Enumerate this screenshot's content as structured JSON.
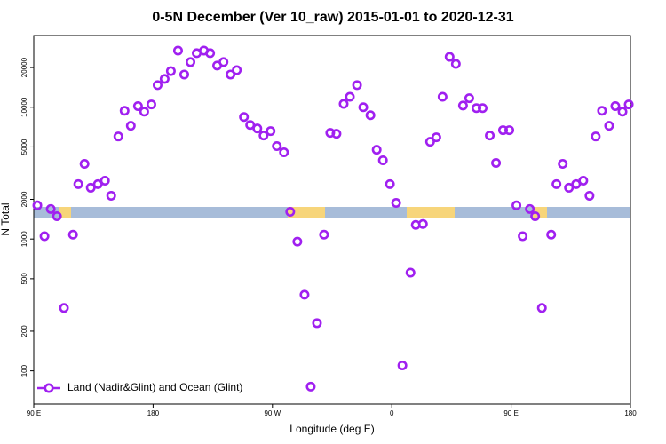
{
  "chart_data": {
    "type": "scatter",
    "title": "0-5N December (Ver 10_raw)   2015-01-01 to 2020-12-31",
    "xlabel": "Longitude (deg E)",
    "ylabel": "N Total",
    "log_y": true,
    "legend": "bottom left",
    "xlim": [
      90,
      540
    ],
    "ylim": [
      56,
      35000
    ],
    "xticks": [
      {
        "value": 90,
        "label": "90 E"
      },
      180,
      {
        "value": 270,
        "label": "90 W"
      },
      {
        "value": 360,
        "label": "0"
      },
      {
        "value": 450,
        "label": "90 E"
      },
      {
        "value": 540,
        "label": "180"
      }
    ],
    "yticks": [
      100,
      200,
      500,
      1000,
      2000,
      5000,
      10000,
      20000
    ],
    "series": [
      {
        "name": "Land (Nadir&Glint) and Ocean (Glint)",
        "color": "#a020f0",
        "x": [
          92.7,
          98.1,
          102.8,
          107.5,
          112.8,
          119.6,
          123.6,
          128.3,
          133.0,
          138.4,
          143.7,
          148.4,
          153.8,
          158.5,
          163.2,
          168.6,
          173.3,
          178.7,
          183.4,
          188.7,
          193.4,
          198.8,
          203.5,
          208.2,
          212.9,
          218.3,
          223.0,
          228.3,
          233.1,
          238.4,
          243.1,
          248.5,
          253.2,
          258.6,
          263.3,
          268.6,
          273.3,
          278.7,
          283.4,
          288.8,
          294.2,
          298.9,
          303.6,
          308.9,
          313.6,
          318.3,
          323.7,
          328.4,
          333.8,
          338.5,
          343.9,
          348.6,
          353.3,
          358.6,
          363.3,
          368.0,
          374.1,
          378.1,
          383.5,
          388.9,
          393.6,
          398.3,
          403.6,
          408.3,
          413.7,
          418.4,
          423.8,
          428.5,
          433.9,
          438.6,
          443.9,
          448.6,
          454.0,
          458.7,
          464.1,
          468.1,
          473.2,
          480.2,
          484.2,
          488.9,
          493.6,
          499.0,
          504.4,
          509.1,
          513.8,
          518.5,
          523.9,
          528.6,
          534.0,
          538.7
        ],
        "values": [
          1800,
          1050,
          1690,
          1490,
          300,
          1080,
          2610,
          3720,
          2450,
          2610,
          2770,
          2130,
          6000,
          9400,
          7230,
          10200,
          9250,
          10500,
          14700,
          16400,
          18800,
          26900,
          17700,
          22000,
          25700,
          26900,
          25700,
          20700,
          22000,
          17700,
          19100,
          8440,
          7340,
          6900,
          6100,
          6590,
          5070,
          4550,
          1610,
          955,
          378,
          76,
          230,
          1080,
          6390,
          6290,
          10600,
          12000,
          14700,
          10000,
          8700,
          4760,
          3960,
          2610,
          1880,
          110,
          556,
          1280,
          1300,
          5470,
          5910,
          12000,
          24100,
          21300,
          10300,
          11700,
          9850,
          9850,
          6100,
          3780,
          6700,
          6700,
          1800,
          1050,
          1690,
          1490,
          300,
          1080,
          2610,
          3720,
          2450,
          2610,
          2770,
          2130,
          6000,
          9400,
          7230,
          10200,
          9250,
          10500
        ]
      }
    ]
  }
}
